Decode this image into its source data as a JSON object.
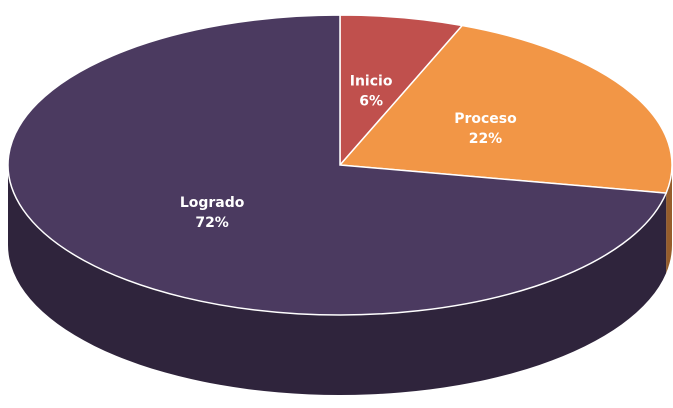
{
  "chart_data": {
    "type": "pie",
    "categories": [
      "Inicio",
      "Proceso",
      "Logrado"
    ],
    "values": [
      6,
      22,
      72
    ],
    "value_labels": [
      "6%",
      "22%",
      "72%"
    ],
    "colors": [
      "#c0504d",
      "#f29646",
      "#4b3a60"
    ]
  }
}
